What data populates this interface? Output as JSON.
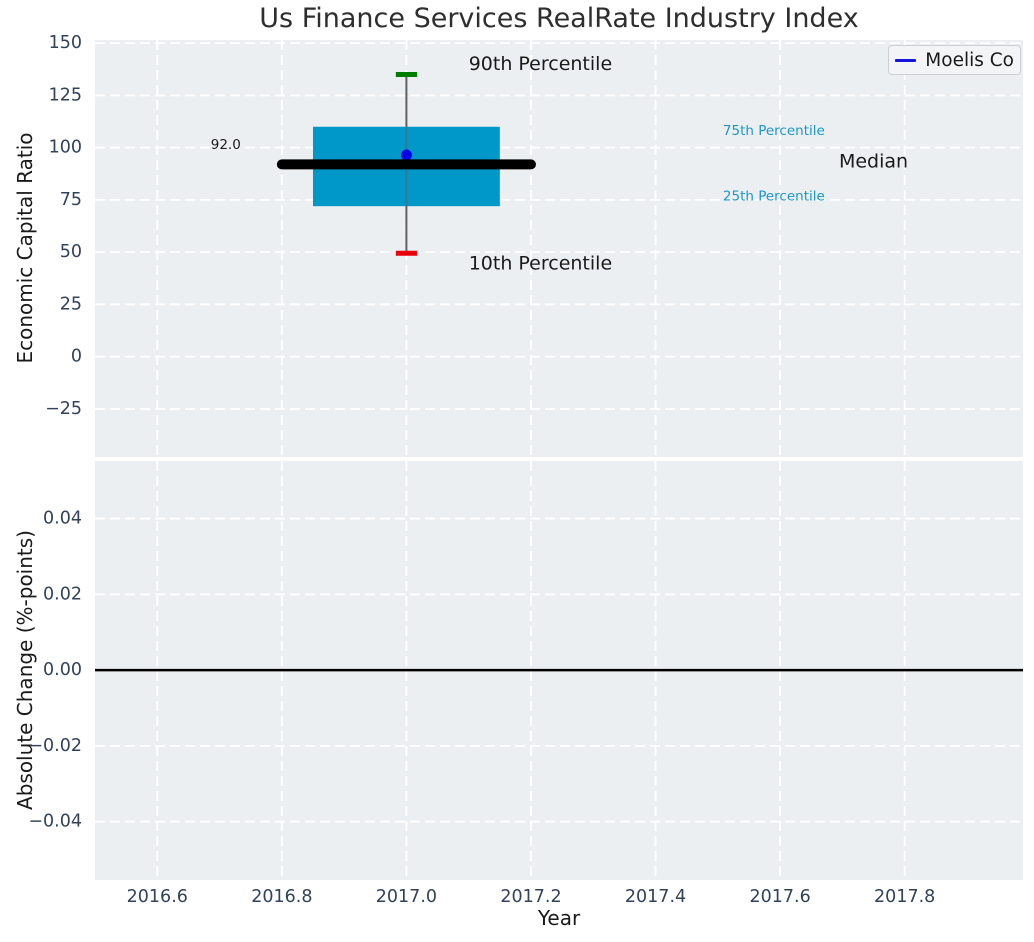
{
  "title": "Us Finance Services RealRate Industry Index",
  "legend": {
    "label": "Moelis Co"
  },
  "x_axis": {
    "label": "Year",
    "xlim": [
      2016.5,
      2017.99
    ],
    "ticks": [
      {
        "v": 2016.6,
        "label": "2016.6"
      },
      {
        "v": 2016.8,
        "label": "2016.8"
      },
      {
        "v": 2017.0,
        "label": "2017.0"
      },
      {
        "v": 2017.2,
        "label": "2017.2"
      },
      {
        "v": 2017.4,
        "label": "2017.4"
      },
      {
        "v": 2017.6,
        "label": "2017.6"
      },
      {
        "v": 2017.8,
        "label": "2017.8"
      }
    ]
  },
  "chart_data": [
    {
      "type": "box",
      "panel": "top",
      "ylabel": "Economic Capital Ratio",
      "ylim": [
        -48,
        151.5
      ],
      "grid": true,
      "yticks": [
        {
          "v": 150,
          "label": "150"
        },
        {
          "v": 125,
          "label": "125"
        },
        {
          "v": 100,
          "label": "100"
        },
        {
          "v": 75,
          "label": "75"
        },
        {
          "v": 50,
          "label": "50"
        },
        {
          "v": 25,
          "label": "25"
        },
        {
          "v": 0,
          "label": "0"
        },
        {
          "v": -25,
          "label": "−25"
        }
      ],
      "series": {
        "name": "Moelis Co",
        "x": 2017.0,
        "p10": 49.5,
        "p25": 72,
        "median": 92.0,
        "p75": 110,
        "p90": 135,
        "company_value": 96.5
      },
      "box_halfwidth": 0.15,
      "median_halfwidth": 0.2,
      "cap_halfwidth": 0.017,
      "annotations": [
        {
          "text": "90th Percentile",
          "x": 2017.1,
          "y": 140.0,
          "size": 19,
          "color": "#1a1a1a",
          "anchor": "start"
        },
        {
          "text": "10th Percentile",
          "x": 2017.1,
          "y": 44.6,
          "size": 19,
          "color": "#1a1a1a",
          "anchor": "start"
        },
        {
          "text": "92.0",
          "x": 2016.71,
          "y": 101.3,
          "size": 13.5,
          "color": "#1a1a1a",
          "anchor": "middle"
        },
        {
          "text": "75th Percentile",
          "x": 2017.59,
          "y": 108.0,
          "size": 13.5,
          "color": "#1b98c8",
          "anchor": "middle"
        },
        {
          "text": "25th Percentile",
          "x": 2017.59,
          "y": 76.6,
          "size": 13.5,
          "color": "#1b98c8",
          "anchor": "middle"
        },
        {
          "text": "Median",
          "x": 2017.75,
          "y": 93.4,
          "size": 19,
          "color": "#1a1a1a",
          "anchor": "middle"
        }
      ]
    },
    {
      "type": "line",
      "panel": "bottom",
      "ylabel": "Absolute Change (%-points)",
      "ylim": [
        -0.0554,
        0.0552
      ],
      "grid": true,
      "yticks": [
        {
          "v": 0.04,
          "label": "0.04"
        },
        {
          "v": 0.02,
          "label": "0.02"
        },
        {
          "v": 0.0,
          "label": "0.00"
        },
        {
          "v": -0.02,
          "label": "−0.02"
        },
        {
          "v": -0.04,
          "label": "−0.04"
        }
      ],
      "zero_line": 0.0,
      "x": [],
      "y": []
    }
  ],
  "colors": {
    "plot_bg": "#eceff1",
    "grid": "#ffffff",
    "box_fill": "#0098c8",
    "median_line": "#000000",
    "whisker": "#606060",
    "cap_90": "#007d00",
    "cap_10": "#e8000b",
    "marker": "#0404e6",
    "legend_line": "#1313dc",
    "zero_line": "#000000",
    "tick_label": "#31425a"
  },
  "layout_hints": {
    "legend_position": "upper-right",
    "grid": "white-dashed"
  }
}
